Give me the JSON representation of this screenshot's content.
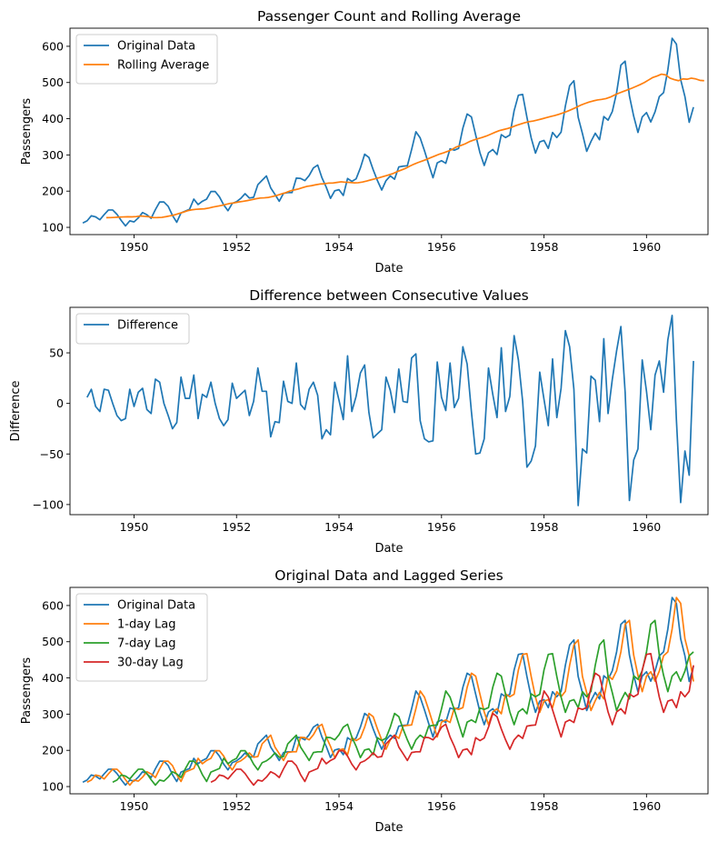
{
  "chart_data": [
    {
      "type": "line",
      "title": "Passenger Count and Rolling Average",
      "xlabel": "Date",
      "ylabel": "Passengers",
      "xlim": [
        1948.75,
        1961.2
      ],
      "ylim": [
        80,
        650
      ],
      "xticks": [
        1950,
        1952,
        1954,
        1956,
        1958,
        1960
      ],
      "xtick_labels": [
        "1950",
        "1952",
        "1954",
        "1956",
        "1958",
        "1960"
      ],
      "yticks": [
        100,
        200,
        300,
        400,
        500,
        600
      ],
      "ytick_labels": [
        "100",
        "200",
        "300",
        "400",
        "500",
        "600"
      ],
      "grid": false,
      "legend": "top-left",
      "series": [
        {
          "name": "Original Data",
          "color": "#1f77b4",
          "x_start": 1949.0,
          "x_step": 0.083333,
          "values": [
            112,
            118,
            132,
            129,
            121,
            135,
            148,
            148,
            136,
            119,
            104,
            118,
            115,
            126,
            141,
            135,
            125,
            149,
            170,
            170,
            158,
            133,
            114,
            140,
            145,
            150,
            178,
            163,
            172,
            178,
            199,
            199,
            184,
            162,
            146,
            166,
            171,
            180,
            193,
            181,
            183,
            218,
            230,
            242,
            209,
            191,
            172,
            194,
            196,
            196,
            236,
            235,
            229,
            243,
            264,
            272,
            237,
            211,
            180,
            201,
            204,
            188,
            235,
            227,
            234,
            264,
            302,
            293,
            259,
            229,
            203,
            229,
            242,
            233,
            267,
            269,
            270,
            315,
            364,
            347,
            312,
            274,
            237,
            278,
            284,
            277,
            317,
            313,
            318,
            374,
            413,
            405,
            355,
            306,
            271,
            306,
            315,
            301,
            356,
            348,
            355,
            422,
            465,
            467,
            404,
            347,
            305,
            336,
            340,
            318,
            362,
            348,
            363,
            435,
            491,
            505,
            404,
            359,
            310,
            337,
            360,
            342,
            406,
            396,
            420,
            472,
            548,
            559,
            463,
            407,
            362,
            405,
            417,
            391,
            419,
            461,
            472,
            535,
            622,
            606,
            508,
            461,
            390,
            432
          ]
        },
        {
          "name": "Rolling Average",
          "color": "#ff7f0e",
          "x_start": 1949.4583,
          "x_step": 0.083333,
          "values": [
            126.7,
            126.9,
            127.6,
            128.3,
            128.8,
            129.2,
            129.0,
            129.8,
            131.4,
            130.4,
            129.3,
            126.9,
            127.1,
            127.6,
            129.6,
            132.0,
            134.5,
            138.1,
            141.8,
            145.9,
            148.4,
            149.8,
            150.6,
            151.3,
            153.3,
            156.2,
            158.4,
            160.6,
            163.3,
            166.1,
            167.7,
            170.1,
            171.8,
            173.8,
            176.2,
            178.9,
            180.9,
            181.6,
            182.7,
            185.4,
            188.3,
            192.1,
            195.8,
            200.4,
            203.4,
            206.1,
            209.7,
            213.2,
            215.0,
            217.5,
            219.6,
            220.4,
            222.1,
            222.4,
            224.0,
            225.8,
            224.6,
            224.0,
            222.9,
            223.3,
            225.2,
            228.0,
            231.3,
            234.4,
            237.3,
            240.8,
            244.2,
            248.0,
            253.3,
            257.8,
            262.5,
            268.6,
            274.2,
            279.0,
            283.3,
            287.6,
            292.7,
            297.3,
            302.2,
            305.8,
            310.1,
            315.3,
            322.3,
            325.9,
            330.5,
            336.5,
            341.0,
            344.8,
            348.3,
            352.2,
            357.2,
            362.3,
            367.0,
            370.0,
            373.0,
            376.8,
            381.4,
            385.2,
            389.0,
            391.8,
            393.7,
            396.6,
            399.5,
            402.7,
            406.0,
            408.7,
            412.3,
            416.2,
            420.8,
            425.7,
            431.1,
            437.0,
            441.6,
            445.8,
            449.1,
            451.8,
            453.3,
            455.5,
            459.6,
            465.3,
            470.5,
            475.0,
            479.4,
            484.0,
            489.0,
            494.2,
            500.0,
            507.0,
            514.0,
            518.0,
            523.0,
            521.0,
            512.0,
            508.0,
            505.0,
            510.0,
            509.0,
            512.0,
            510.0,
            506.0,
            505.0
          ]
        }
      ]
    },
    {
      "type": "line",
      "title": "Difference between Consecutive Values",
      "xlabel": "Date",
      "ylabel": "Difference",
      "xlim": [
        1948.75,
        1961.2
      ],
      "ylim": [
        -110,
        95
      ],
      "xticks": [
        1950,
        1952,
        1954,
        1956,
        1958,
        1960
      ],
      "xtick_labels": [
        "1950",
        "1952",
        "1954",
        "1956",
        "1958",
        "1960"
      ],
      "yticks": [
        50,
        0,
        -50,
        -100
      ],
      "ytick_labels": [
        "50",
        "0",
        "−50",
        "−100"
      ],
      "grid": false,
      "legend": "top-left",
      "series": [
        {
          "name": "Difference",
          "color": "#1f77b4",
          "x_start": 1949.0833,
          "x_step": 0.083333,
          "values": [
            6,
            14,
            -3,
            -8,
            14,
            13,
            0,
            -12,
            -17,
            -15,
            14,
            -3,
            11,
            15,
            -6,
            -10,
            24,
            21,
            0,
            -12,
            -25,
            -19,
            26,
            5,
            5,
            28,
            -15,
            9,
            6,
            21,
            0,
            -15,
            -22,
            -16,
            20,
            5,
            9,
            13,
            -12,
            2,
            35,
            12,
            12,
            -33,
            -18,
            -19,
            22,
            2,
            0,
            40,
            -1,
            -6,
            14,
            21,
            8,
            -35,
            -26,
            -31,
            21,
            3,
            -16,
            47,
            -8,
            7,
            30,
            38,
            -9,
            -34,
            -30,
            -26,
            26,
            13,
            -9,
            34,
            2,
            1,
            45,
            49,
            -17,
            -35,
            -38,
            -37,
            41,
            6,
            -7,
            40,
            -4,
            5,
            56,
            39,
            -8,
            -50,
            -49,
            -35,
            35,
            9,
            -14,
            55,
            -8,
            7,
            67,
            43,
            2,
            -63,
            -57,
            -42,
            31,
            4,
            -22,
            44,
            -14,
            15,
            72,
            56,
            14,
            -101,
            -45,
            -49,
            27,
            23,
            -18,
            64,
            -10,
            24,
            52,
            76,
            11,
            -96,
            -56,
            -45,
            43,
            12,
            -26,
            28,
            42,
            11,
            63,
            87,
            -16,
            -98,
            -47,
            -71,
            42
          ]
        }
      ]
    },
    {
      "type": "line",
      "title": "Original Data and Lagged Series",
      "xlabel": "Date",
      "ylabel": "Passengers",
      "xlim": [
        1948.75,
        1961.2
      ],
      "ylim": [
        80,
        650
      ],
      "xticks": [
        1950,
        1952,
        1954,
        1956,
        1958,
        1960
      ],
      "xtick_labels": [
        "1950",
        "1952",
        "1954",
        "1956",
        "1958",
        "1960"
      ],
      "yticks": [
        100,
        200,
        300,
        400,
        500,
        600
      ],
      "ytick_labels": [
        "100",
        "200",
        "300",
        "400",
        "500",
        "600"
      ],
      "grid": false,
      "legend": "top-left",
      "series": [
        {
          "name": "Original Data",
          "color": "#1f77b4",
          "lag_months": 0
        },
        {
          "name": "1-day Lag",
          "color": "#ff7f0e",
          "lag_months": 1
        },
        {
          "name": "7-day Lag",
          "color": "#2ca02c",
          "lag_months": 7
        },
        {
          "name": "30-day Lag",
          "color": "#d62728",
          "lag_months": 30
        }
      ]
    }
  ]
}
